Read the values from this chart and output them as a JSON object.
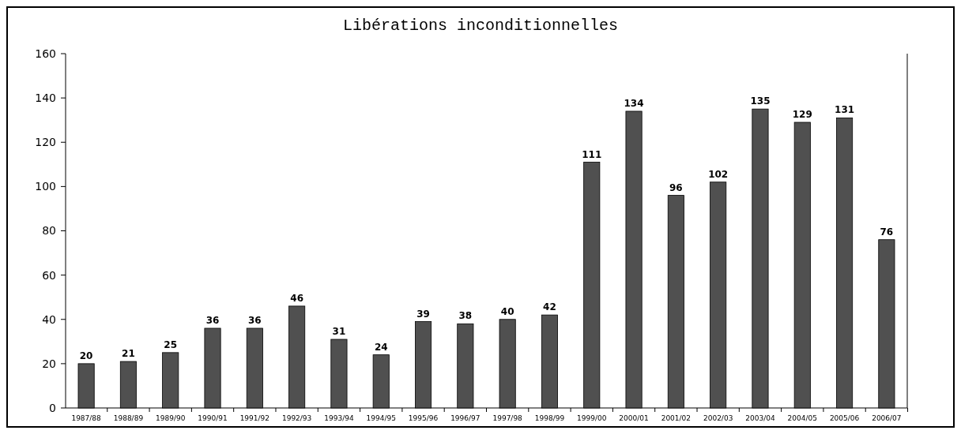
{
  "chart_data": {
    "type": "bar",
    "title": "Libérations inconditionnelles",
    "categories": [
      "1987/88",
      "1988/89",
      "1989/90",
      "1990/91",
      "1991/92",
      "1992/93",
      "1993/94",
      "1994/95",
      "1995/96",
      "1996/97",
      "1997/98",
      "1998/99",
      "1999/00",
      "2000/01",
      "2001/02",
      "2002/03",
      "2003/04",
      "2004/05",
      "2005/06",
      "2006/07"
    ],
    "values": [
      20,
      21,
      25,
      36,
      36,
      46,
      31,
      24,
      39,
      38,
      40,
      42,
      111,
      134,
      96,
      102,
      135,
      129,
      131,
      76
    ],
    "color": "#505050",
    "ylim": [
      0,
      160
    ],
    "yticks": [
      0,
      20,
      40,
      60,
      80,
      100,
      120,
      140,
      160
    ],
    "data_labels": true
  }
}
